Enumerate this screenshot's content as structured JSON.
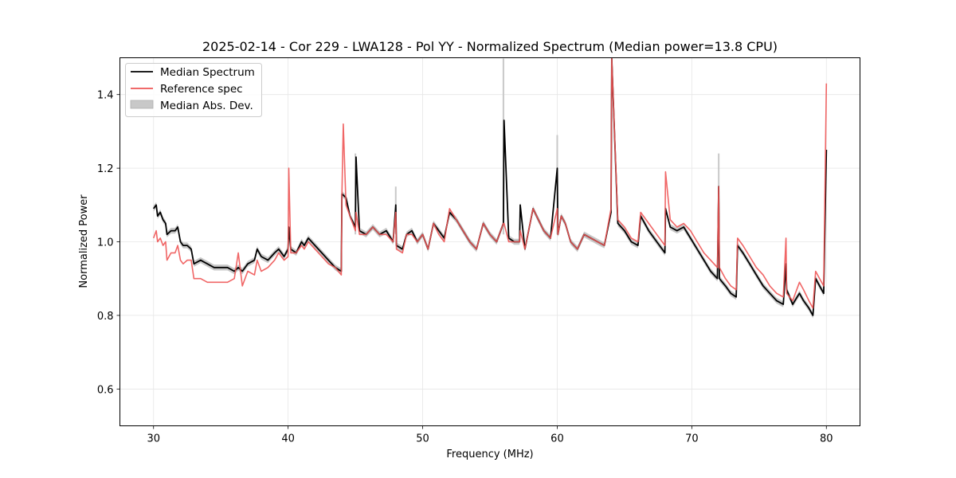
{
  "chart_data": {
    "type": "line",
    "title": "2025-02-14 - Cor 229 - LWA128 - Pol YY - Normalized Spectrum (Median power=13.8 CPU)",
    "xlabel": "Frequency (MHz)",
    "ylabel": "Normalized Power",
    "xlim": [
      27.5,
      82.5
    ],
    "ylim": [
      0.5,
      1.5
    ],
    "xticks": [
      30,
      40,
      50,
      60,
      70,
      80
    ],
    "yticks": [
      0.6,
      0.8,
      1.0,
      1.2,
      1.4
    ],
    "xtick_labels": [
      "30",
      "40",
      "50",
      "60",
      "70",
      "80"
    ],
    "ytick_labels": [
      "0.6",
      "0.8",
      "1.0",
      "1.2",
      "1.4"
    ],
    "grid": true,
    "legend_position": "top-left",
    "legend": [
      "Median Spectrum",
      "Reference spec",
      "Median Abs. Dev."
    ],
    "series": [
      {
        "name": "Median Spectrum",
        "color": "#000000",
        "x": [
          30.0,
          30.2,
          30.3,
          30.5,
          30.7,
          30.9,
          31.0,
          31.3,
          31.6,
          31.8,
          32.0,
          32.2,
          32.5,
          32.8,
          33.0,
          33.5,
          34.0,
          34.5,
          35.0,
          35.5,
          36.0,
          36.3,
          36.6,
          37.0,
          37.5,
          37.7,
          38.0,
          38.5,
          39.0,
          39.3,
          39.7,
          40.0,
          40.05,
          40.2,
          40.6,
          41.0,
          41.2,
          41.5,
          42.0,
          42.5,
          43.0,
          43.5,
          43.95,
          44.0,
          44.3,
          44.6,
          45.0,
          45.05,
          45.3,
          45.8,
          46.3,
          46.8,
          47.3,
          47.8,
          48.0,
          48.05,
          48.5,
          48.8,
          49.2,
          49.6,
          50.0,
          50.4,
          50.8,
          51.2,
          51.6,
          52.0,
          52.5,
          53.0,
          53.5,
          54.0,
          54.5,
          55.0,
          55.5,
          56.0,
          56.05,
          56.4,
          56.8,
          57.2,
          57.25,
          57.6,
          58.2,
          58.6,
          59.0,
          59.5,
          60.0,
          60.05,
          60.3,
          60.6,
          61.0,
          61.5,
          62.0,
          62.5,
          63.0,
          63.5,
          64.0,
          64.05,
          64.5,
          65.0,
          65.5,
          66.0,
          66.2,
          66.8,
          67.4,
          68.0,
          68.05,
          68.4,
          68.9,
          69.4,
          69.9,
          70.4,
          70.9,
          71.4,
          71.9,
          72.0,
          72.05,
          72.5,
          72.9,
          73.3,
          73.4,
          73.8,
          74.3,
          74.8,
          75.3,
          75.8,
          76.3,
          76.8,
          77.0,
          77.05,
          77.5,
          78.0,
          78.3,
          78.7,
          79.0,
          79.2,
          79.5,
          79.8,
          80.0
        ],
        "values": [
          1.09,
          1.1,
          1.07,
          1.08,
          1.06,
          1.05,
          1.02,
          1.03,
          1.03,
          1.04,
          1.0,
          0.99,
          0.99,
          0.98,
          0.94,
          0.95,
          0.94,
          0.93,
          0.93,
          0.93,
          0.92,
          0.93,
          0.92,
          0.94,
          0.95,
          0.98,
          0.96,
          0.95,
          0.97,
          0.98,
          0.96,
          0.98,
          1.04,
          0.98,
          0.97,
          1.0,
          0.99,
          1.01,
          0.99,
          0.97,
          0.95,
          0.93,
          0.92,
          1.13,
          1.12,
          1.07,
          1.04,
          1.23,
          1.03,
          1.02,
          1.04,
          1.02,
          1.03,
          1.0,
          1.1,
          0.99,
          0.98,
          1.02,
          1.03,
          1.0,
          1.02,
          0.98,
          1.05,
          1.03,
          1.01,
          1.08,
          1.06,
          1.03,
          1.0,
          0.98,
          1.05,
          1.02,
          1.0,
          1.05,
          1.33,
          1.01,
          1.0,
          1.0,
          1.1,
          0.98,
          1.09,
          1.06,
          1.03,
          1.01,
          1.2,
          1.02,
          1.07,
          1.05,
          1.0,
          0.98,
          1.02,
          1.01,
          1.0,
          0.99,
          1.08,
          1.5,
          1.05,
          1.03,
          1.0,
          0.99,
          1.07,
          1.03,
          1.0,
          0.97,
          1.09,
          1.04,
          1.03,
          1.04,
          1.01,
          0.98,
          0.95,
          0.92,
          0.9,
          1.15,
          0.9,
          0.88,
          0.86,
          0.85,
          0.99,
          0.97,
          0.94,
          0.91,
          0.88,
          0.86,
          0.84,
          0.83,
          0.94,
          0.87,
          0.83,
          0.86,
          0.84,
          0.82,
          0.8,
          0.9,
          0.88,
          0.86,
          1.25
        ]
      },
      {
        "name": "Reference spec",
        "color": "#ee5555",
        "x": [
          30.0,
          30.2,
          30.3,
          30.5,
          30.7,
          30.9,
          31.0,
          31.3,
          31.6,
          31.8,
          32.0,
          32.2,
          32.5,
          32.8,
          33.0,
          33.5,
          34.0,
          34.5,
          35.0,
          35.5,
          36.0,
          36.3,
          36.6,
          37.0,
          37.5,
          37.7,
          38.0,
          38.5,
          39.0,
          39.3,
          39.7,
          40.0,
          40.05,
          40.2,
          40.6,
          41.0,
          41.2,
          41.5,
          42.0,
          42.5,
          43.0,
          43.5,
          43.95,
          44.0,
          44.1,
          44.3,
          44.6,
          45.0,
          45.05,
          45.3,
          45.8,
          46.3,
          46.8,
          47.3,
          47.8,
          48.0,
          48.05,
          48.5,
          48.8,
          49.2,
          49.6,
          50.0,
          50.4,
          50.8,
          51.2,
          51.6,
          52.0,
          52.5,
          53.0,
          53.5,
          54.0,
          54.5,
          55.0,
          55.5,
          56.0,
          56.05,
          56.4,
          56.8,
          57.2,
          57.25,
          57.6,
          58.2,
          58.6,
          59.0,
          59.5,
          60.0,
          60.05,
          60.3,
          60.6,
          61.0,
          61.5,
          62.0,
          62.5,
          63.0,
          63.5,
          64.0,
          64.05,
          64.5,
          65.0,
          65.5,
          66.0,
          66.2,
          66.8,
          67.4,
          68.0,
          68.05,
          68.4,
          68.9,
          69.4,
          69.9,
          70.4,
          70.9,
          71.4,
          71.9,
          72.0,
          72.05,
          72.5,
          72.9,
          73.3,
          73.4,
          73.8,
          74.3,
          74.8,
          75.3,
          75.8,
          76.3,
          76.8,
          77.0,
          77.05,
          77.5,
          78.0,
          78.3,
          78.7,
          79.0,
          79.2,
          79.5,
          79.8,
          80.0
        ],
        "values": [
          1.01,
          1.03,
          1.0,
          1.01,
          0.99,
          1.0,
          0.95,
          0.97,
          0.97,
          0.99,
          0.95,
          0.94,
          0.95,
          0.95,
          0.9,
          0.9,
          0.89,
          0.89,
          0.89,
          0.89,
          0.9,
          0.97,
          0.88,
          0.92,
          0.91,
          0.95,
          0.92,
          0.93,
          0.95,
          0.97,
          0.95,
          0.96,
          1.2,
          0.97,
          0.97,
          0.99,
          0.98,
          1.0,
          0.98,
          0.96,
          0.94,
          0.93,
          0.91,
          1.13,
          1.32,
          1.1,
          1.07,
          1.03,
          1.08,
          1.02,
          1.02,
          1.04,
          1.02,
          1.02,
          1.0,
          1.08,
          0.98,
          0.97,
          1.02,
          1.02,
          1.0,
          1.02,
          0.98,
          1.05,
          1.02,
          1.0,
          1.09,
          1.06,
          1.03,
          1.0,
          0.98,
          1.05,
          1.02,
          1.0,
          1.05,
          1.05,
          1.0,
          1.0,
          1.0,
          1.03,
          0.98,
          1.09,
          1.06,
          1.03,
          1.01,
          1.09,
          1.02,
          1.07,
          1.05,
          1.0,
          0.98,
          1.02,
          1.01,
          1.0,
          0.99,
          1.09,
          1.5,
          1.06,
          1.04,
          1.01,
          1.0,
          1.08,
          1.05,
          1.02,
          0.99,
          1.19,
          1.06,
          1.04,
          1.05,
          1.03,
          1.0,
          0.97,
          0.95,
          0.93,
          1.15,
          0.93,
          0.9,
          0.88,
          0.87,
          1.01,
          0.99,
          0.96,
          0.93,
          0.91,
          0.88,
          0.86,
          0.85,
          1.01,
          0.86,
          0.84,
          0.89,
          0.87,
          0.84,
          0.82,
          0.92,
          0.9,
          0.88,
          1.43
        ]
      }
    ],
    "band": {
      "name": "Median Abs. Dev.",
      "color": "#c8c8c8",
      "spikes": [
        {
          "x": 45.0,
          "high": 1.24
        },
        {
          "x": 48.0,
          "high": 1.15
        },
        {
          "x": 56.0,
          "high": 1.5
        },
        {
          "x": 60.0,
          "high": 1.29
        },
        {
          "x": 72.0,
          "high": 1.24
        }
      ],
      "half_width": 0.008
    }
  }
}
